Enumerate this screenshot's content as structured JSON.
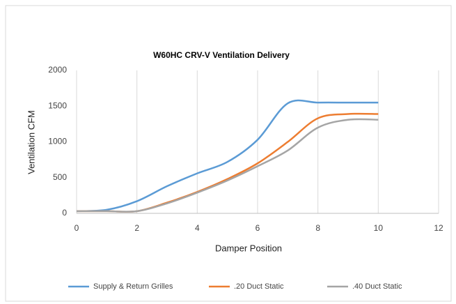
{
  "chart_data": {
    "type": "line",
    "title": "W60HC CRV-V Ventilation Delivery",
    "x_label": "Damper Position",
    "y_label": "Ventilation CFM",
    "x": [
      0,
      1,
      2,
      3,
      4,
      5,
      6,
      7,
      8,
      9,
      10
    ],
    "series": [
      {
        "name": "Supply & Return Grilles",
        "color": "#5b9bd5",
        "values": [
          30,
          50,
          170,
          380,
          560,
          720,
          1030,
          1540,
          1550,
          1550,
          1550
        ]
      },
      {
        "name": ".20 Duct Static",
        "color": "#ed7d31",
        "values": [
          30,
          30,
          30,
          150,
          300,
          480,
          700,
          1000,
          1330,
          1390,
          1390
        ]
      },
      {
        "name": ".40 Duct Static",
        "color": "#a5a5a5",
        "values": [
          30,
          30,
          30,
          140,
          290,
          460,
          660,
          880,
          1200,
          1310,
          1310
        ]
      }
    ],
    "xlim": [
      0,
      12
    ],
    "xticks": [
      0,
      2,
      4,
      6,
      8,
      10,
      12
    ],
    "ylim": [
      0,
      2000
    ],
    "yticks": [
      0,
      500,
      1000,
      1500,
      2000
    ],
    "grid": "x",
    "legend": "bottom"
  }
}
